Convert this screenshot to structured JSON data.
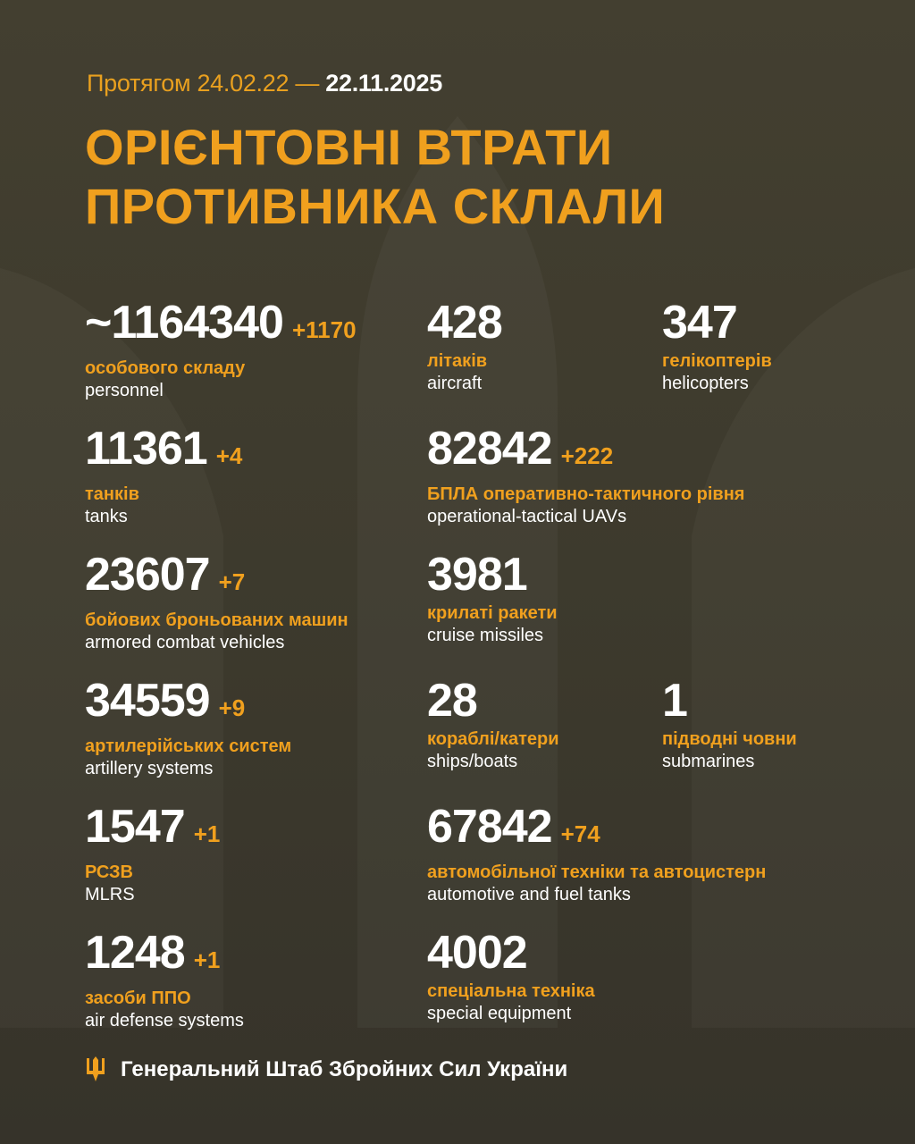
{
  "header": {
    "period_prefix": "Протягом 24.02.22 —",
    "period_end": "22.11.2025",
    "title_line1": "ОРІЄНТОВНІ ВТРАТИ",
    "title_line2": "ПРОТИВНИКА СКЛАЛИ"
  },
  "colors": {
    "accent": "#f0a01e",
    "background": "#3f3b2e",
    "text": "#ffffff"
  },
  "stats": [
    {
      "value": "~1164340",
      "delta": "+1170",
      "ua": "особового складу",
      "en": "personnel"
    },
    {
      "value": "428",
      "delta": "",
      "ua": "літаків",
      "en": "aircraft"
    },
    {
      "value": "347",
      "delta": "",
      "ua": "гелікоптерів",
      "en": "helicopters"
    },
    {
      "value": "11361",
      "delta": "+4",
      "ua": "танків",
      "en": "tanks"
    },
    {
      "value": "82842",
      "delta": "+222",
      "ua": "БПЛА оперативно-тактичного рівня",
      "en": "operational-tactical UAVs"
    },
    {
      "value": "23607",
      "delta": "+7",
      "ua": "бойових броньованих машин",
      "en": "armored combat vehicles"
    },
    {
      "value": "3981",
      "delta": "",
      "ua": "крилаті ракети",
      "en": "cruise missiles"
    },
    {
      "value": "34559",
      "delta": "+9",
      "ua": "артилерійських систем",
      "en": "artillery systems"
    },
    {
      "value": "28",
      "delta": "",
      "ua": "кораблі/катери",
      "en": "ships/boats"
    },
    {
      "value": "1",
      "delta": "",
      "ua": "підводні човни",
      "en": "submarines"
    },
    {
      "value": "1547",
      "delta": "+1",
      "ua": "РСЗВ",
      "en": "MLRS"
    },
    {
      "value": "67842",
      "delta": "+74",
      "ua": "автомобільної техніки та автоцистерн",
      "en": "automotive and fuel tanks"
    },
    {
      "value": "1248",
      "delta": "+1",
      "ua": "засоби ППО",
      "en": "air defense systems"
    },
    {
      "value": "4002",
      "delta": "",
      "ua": "спеціальна техніка",
      "en": "special equipment"
    }
  ],
  "footer": {
    "icon": "trident-icon",
    "text": "Генеральний Штаб Збройних Сил України"
  }
}
